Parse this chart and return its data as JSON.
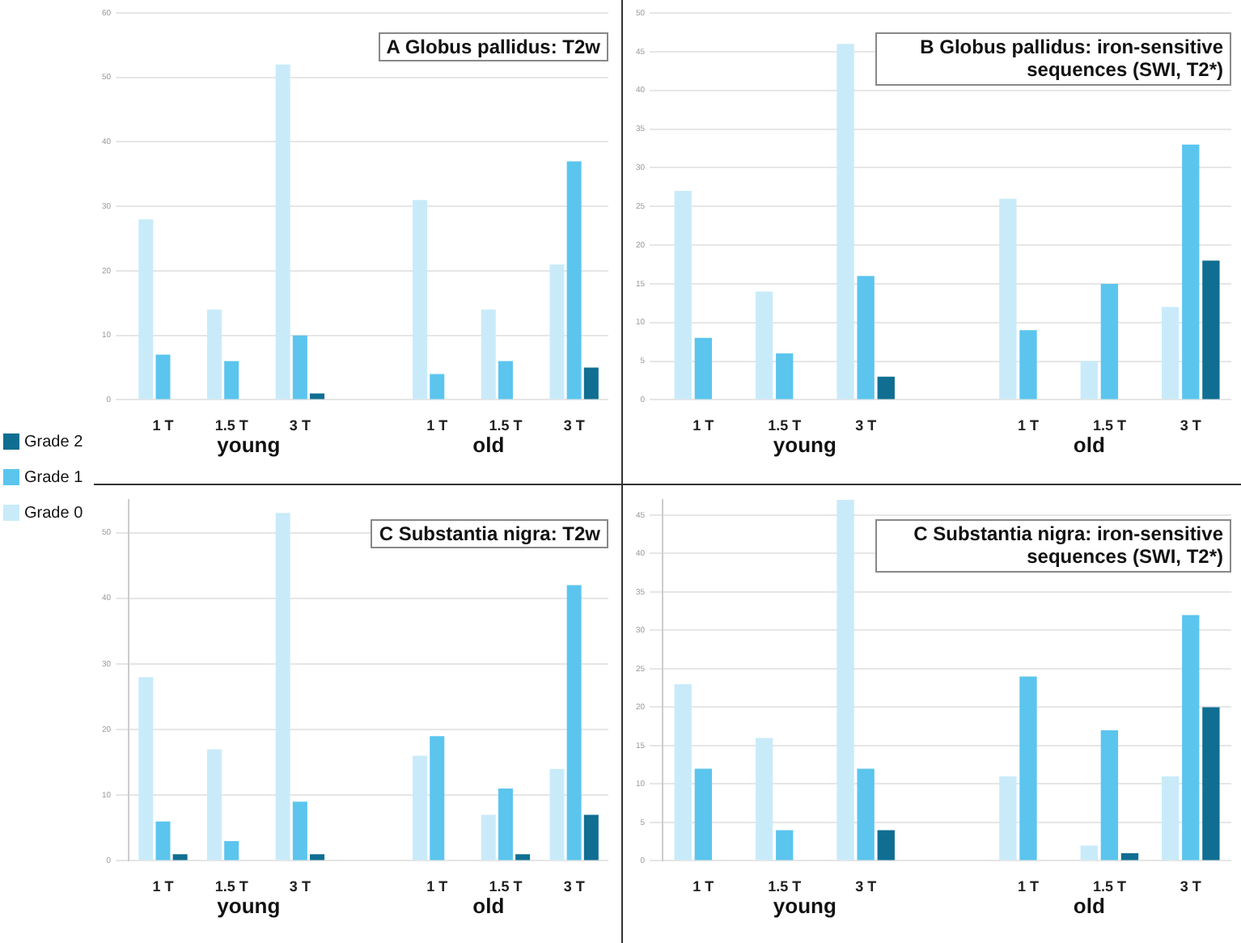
{
  "chart_data": [
    {
      "type": "bar",
      "title": "A Globus pallidus: T2w",
      "categories": [
        "1 T",
        "1.5 T",
        "3 T",
        null,
        "1 T",
        "1.5 T",
        "3 T"
      ],
      "series": [
        {
          "name": "Grade 0",
          "color": "#c9ebf9",
          "values": [
            28,
            14,
            52,
            null,
            31,
            14,
            21
          ]
        },
        {
          "name": "Grade 1",
          "color": "#5bc5ee",
          "values": [
            7,
            6,
            10,
            null,
            4,
            6,
            37
          ]
        },
        {
          "name": "Grade 2",
          "color": "#0f6e92",
          "values": [
            0,
            0,
            1,
            null,
            0,
            0,
            5
          ]
        }
      ],
      "ylim": [
        0,
        60
      ],
      "yticks": [
        0,
        10,
        20,
        30,
        40,
        50,
        60
      ],
      "grid": "y",
      "legend": "left",
      "annotations": [
        "young",
        "old"
      ]
    },
    {
      "type": "bar",
      "title": "B Globus pallidus: iron-sensitive sequences (SWI, T2*)",
      "categories": [
        "1 T",
        "1.5 T",
        "3 T",
        null,
        "1 T",
        "1.5 T",
        "3 T"
      ],
      "series": [
        {
          "color": "#c9ebf9",
          "values": [
            27,
            14,
            46,
            null,
            26,
            5,
            12
          ]
        },
        {
          "color": "#5bc5ee",
          "values": [
            8,
            6,
            16,
            null,
            9,
            15,
            33
          ]
        },
        {
          "color": "#0f6e92",
          "values": [
            0,
            0,
            3,
            null,
            0,
            0,
            18
          ]
        }
      ],
      "ylim": [
        0,
        50
      ],
      "yticks": [
        0,
        5,
        10,
        15,
        20,
        25,
        30,
        35,
        40,
        45,
        50
      ],
      "grid": "y",
      "annotations": [
        "young",
        "old"
      ]
    },
    {
      "type": "bar",
      "title": "C Substantia nigra: T2w",
      "categories": [
        "1 T",
        "1.5 T",
        "3 T",
        null,
        "1 T",
        "1.5 T",
        "3 T"
      ],
      "series": [
        {
          "color": "#c9ebf9",
          "values": [
            28,
            17,
            53,
            null,
            16,
            7,
            14
          ]
        },
        {
          "color": "#5bc5ee",
          "values": [
            6,
            3,
            9,
            null,
            19,
            11,
            42
          ]
        },
        {
          "color": "#0f6e92",
          "values": [
            1,
            0,
            1,
            null,
            0,
            1,
            7
          ]
        }
      ],
      "ylim": [
        0,
        55
      ],
      "yticks": [
        0,
        10,
        20,
        30,
        40,
        50
      ],
      "grid": "y",
      "annotations": [
        "young",
        "old"
      ]
    },
    {
      "type": "bar",
      "title": "C Substantia nigra: iron-sensitive sequences (SWI, T2*)",
      "categories": [
        "1 T",
        "1.5 T",
        "3 T",
        null,
        "1 T",
        "1.5 T",
        "3 T"
      ],
      "series": [
        {
          "color": "#c9ebf9",
          "values": [
            23,
            16,
            47,
            null,
            11,
            2,
            11
          ]
        },
        {
          "color": "#5bc5ee",
          "values": [
            12,
            4,
            12,
            null,
            24,
            17,
            32
          ]
        },
        {
          "color": "#0f6e92",
          "values": [
            0,
            0,
            4,
            null,
            0,
            1,
            20
          ]
        }
      ],
      "ylim": [
        0,
        47
      ],
      "yticks": [
        0,
        5,
        10,
        15,
        20,
        25,
        30,
        35,
        40,
        45
      ],
      "grid": "y",
      "annotations": [
        "young",
        "old"
      ]
    }
  ]
}
